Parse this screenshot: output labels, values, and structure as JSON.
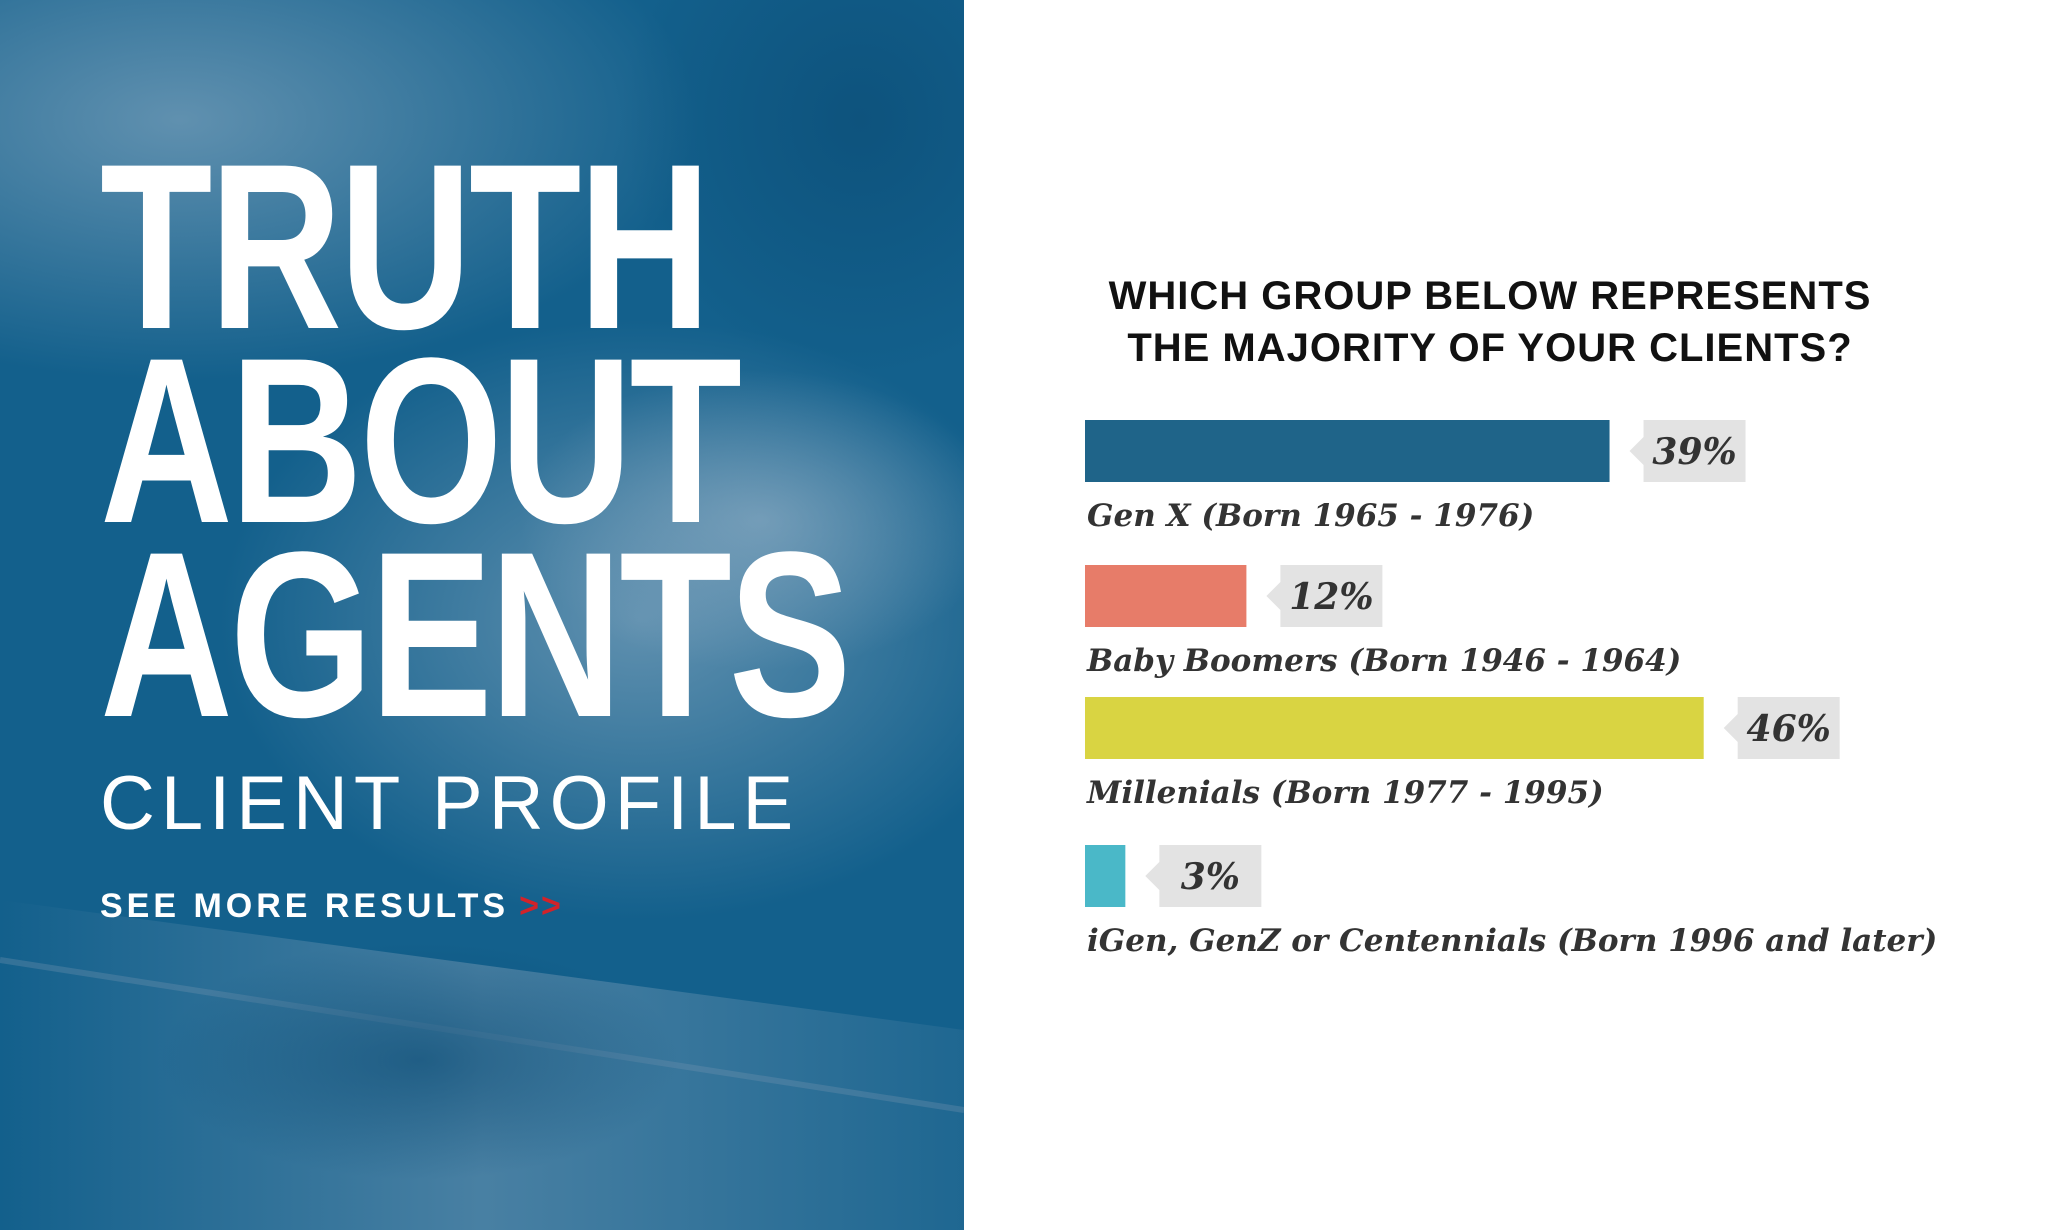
{
  "hero": {
    "title_lines": [
      "TRUTH",
      "ABOUT",
      "AGENTS"
    ],
    "subtitle": "CLIENT PROFILE",
    "cta_label": "SEE MORE RESULTS",
    "cta_arrows": ">>"
  },
  "colors": {
    "panel_blue": "#13608c",
    "gen_x": "#1f6489",
    "baby_boomers": "#e77c69",
    "millenials": "#d9d442",
    "igen": "#4ab8c8",
    "callout_bg": "#e3e3e3",
    "arrow_accent": "#d2232a"
  },
  "chart_data": {
    "type": "bar",
    "orientation": "horizontal",
    "title": "WHICH GROUP BELOW REPRESENTS THE MAJORITY OF YOUR CLIENTS?",
    "title_lines": [
      "WHICH GROUP BELOW REPRESENTS",
      "THE MAJORITY OF YOUR CLIENTS?"
    ],
    "categories": [
      "Gen X (Born 1965 - 1976)",
      "Baby Boomers (Born 1946 - 1964)",
      "Millenials (Born 1977 - 1995)",
      "iGen, GenZ or Centennials (Born 1996 and later)"
    ],
    "values": [
      39,
      12,
      46,
      3
    ],
    "value_labels": [
      "39%",
      "12%",
      "46%",
      "3%"
    ],
    "unit": "%",
    "xlim": [
      0,
      100
    ],
    "grid": false,
    "legend": "none"
  }
}
